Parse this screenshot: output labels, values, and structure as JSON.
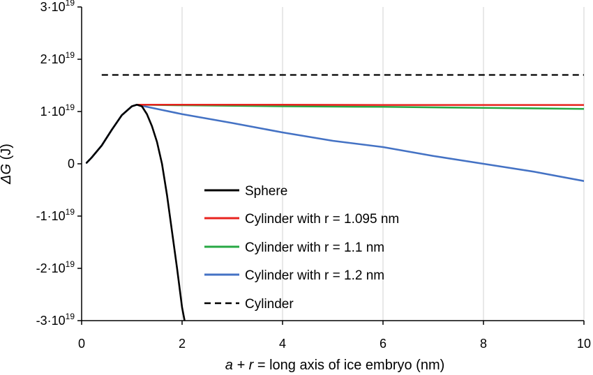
{
  "chart_data": {
    "type": "line",
    "xlabel_italic": "a + r",
    "xlabel_rest": " = long axis of ice embryo (nm)",
    "ylabel_italic": "ΔG",
    "ylabel_rest": " (J)",
    "xlim": [
      0,
      10
    ],
    "ylim": [
      -3e+19,
      3e+19
    ],
    "x_ticks": [
      {
        "value": 0,
        "label": "0"
      },
      {
        "value": 2,
        "label": "2"
      },
      {
        "value": 4,
        "label": "4"
      },
      {
        "value": 6,
        "label": "6"
      },
      {
        "value": 8,
        "label": "8"
      },
      {
        "value": 10,
        "label": "10"
      }
    ],
    "y_ticks": [
      {
        "value": 3e+19,
        "mantissa": "3·10",
        "exp": "19"
      },
      {
        "value": 2e+19,
        "mantissa": "2·10",
        "exp": "19"
      },
      {
        "value": 1e+19,
        "mantissa": "1·10",
        "exp": "19"
      },
      {
        "value": 0,
        "mantissa": "0",
        "exp": ""
      },
      {
        "value": -1e+19,
        "mantissa": "-1·10",
        "exp": "19"
      },
      {
        "value": -2e+19,
        "mantissa": "-2·10",
        "exp": "19"
      },
      {
        "value": -3e+19,
        "mantissa": "-3·10",
        "exp": "19"
      }
    ],
    "grid": "vertical",
    "legend_position": "lower-center",
    "series": [
      {
        "name": "Sphere",
        "color": "#000000",
        "dash": "solid",
        "x": [
          0.1,
          0.2,
          0.4,
          0.6,
          0.8,
          1.0,
          1.1,
          1.2,
          1.3,
          1.4,
          1.5,
          1.6,
          1.7,
          1.8,
          1.9,
          2.0,
          2.05
        ],
        "y": [
          2e+17,
          1.2e+18,
          3.5e+18,
          6.5e+18,
          9.3e+18,
          1.1e+19,
          1.13e+19,
          1.1e+19,
          9.5e+18,
          7.2e+18,
          4.2e+18,
          0.0,
          -6e+18,
          -1.3e+19,
          -2e+19,
          -2.75e+19,
          -3e+19
        ]
      },
      {
        "name": "Cylinder with r = 1.095 nm",
        "color": "#e8231f",
        "dash": "solid",
        "x": [
          1.1,
          2.0,
          4.0,
          6.0,
          8.0,
          10.0
        ],
        "y": [
          1.13e+19,
          1.13e+19,
          1.13e+19,
          1.125e+19,
          1.125e+19,
          1.125e+19
        ]
      },
      {
        "name": "Cylinder with r = 1.1 nm",
        "color": "#27a844",
        "dash": "solid",
        "x": [
          1.1,
          2.0,
          4.0,
          6.0,
          8.0,
          10.0
        ],
        "y": [
          1.13e+19,
          1.12e+19,
          1.1e+19,
          1.09e+19,
          1.07e+19,
          1.05e+19
        ]
      },
      {
        "name": "Cylinder with r = 1.2 nm",
        "color": "#4472c4",
        "dash": "solid",
        "x": [
          0.1,
          0.2,
          0.4,
          0.6,
          0.8,
          1.0,
          1.1,
          1.2,
          1.6,
          2.0,
          3.0,
          4.0,
          5.0,
          6.0,
          7.0,
          8.0,
          9.0,
          10.0
        ],
        "y": [
          2e+17,
          1.2e+18,
          3.5e+18,
          6.5e+18,
          9.3e+18,
          1.1e+19,
          1.13e+19,
          1.11e+19,
          1.03e+19,
          9.5e+18,
          7.8e+18,
          6e+18,
          4.4e+18,
          3.2e+18,
          1.5e+18,
          0.0,
          -1.5e+18,
          -3.3e+18
        ]
      },
      {
        "name": "Cylinder",
        "color": "#000000",
        "dash": "dashed",
        "x": [
          0.4,
          10.0
        ],
        "y": [
          1.7e+19,
          1.7e+19
        ]
      }
    ]
  }
}
